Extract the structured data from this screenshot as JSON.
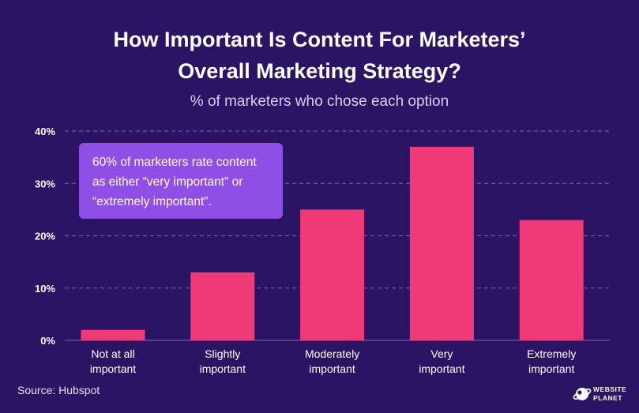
{
  "header": {
    "title_line1": "How Important Is Content For Marketers’",
    "title_line2": "Overall Marketing Strategy?",
    "subtitle": "% of marketers who chose each option"
  },
  "callout": {
    "line1": "60% of marketers rate content",
    "line2": "as either “very important” or",
    "line3": "“extremely important”."
  },
  "footer": {
    "source": "Source: Hubspot",
    "brand_line1": "WEBSITE",
    "brand_line2": "PLANET",
    "brand_icon": "planet-logo-icon"
  },
  "colors": {
    "background": "#2a1463",
    "bar": "#ee3a76",
    "callout": "#8f4fe6",
    "grid": "#6a56a8"
  },
  "chart_data": {
    "type": "bar",
    "categories": [
      [
        "Not at all",
        "important"
      ],
      [
        "Slightly",
        "important"
      ],
      [
        "Moderately",
        "important"
      ],
      [
        "Very",
        "important"
      ],
      [
        "Extremely",
        "important"
      ]
    ],
    "values": [
      2,
      13,
      25,
      37,
      23
    ],
    "y_ticks": [
      "0%",
      "10%",
      "20%",
      "30%",
      "40%"
    ],
    "ylim": [
      0,
      40
    ],
    "grid": "dashed horizontal"
  }
}
